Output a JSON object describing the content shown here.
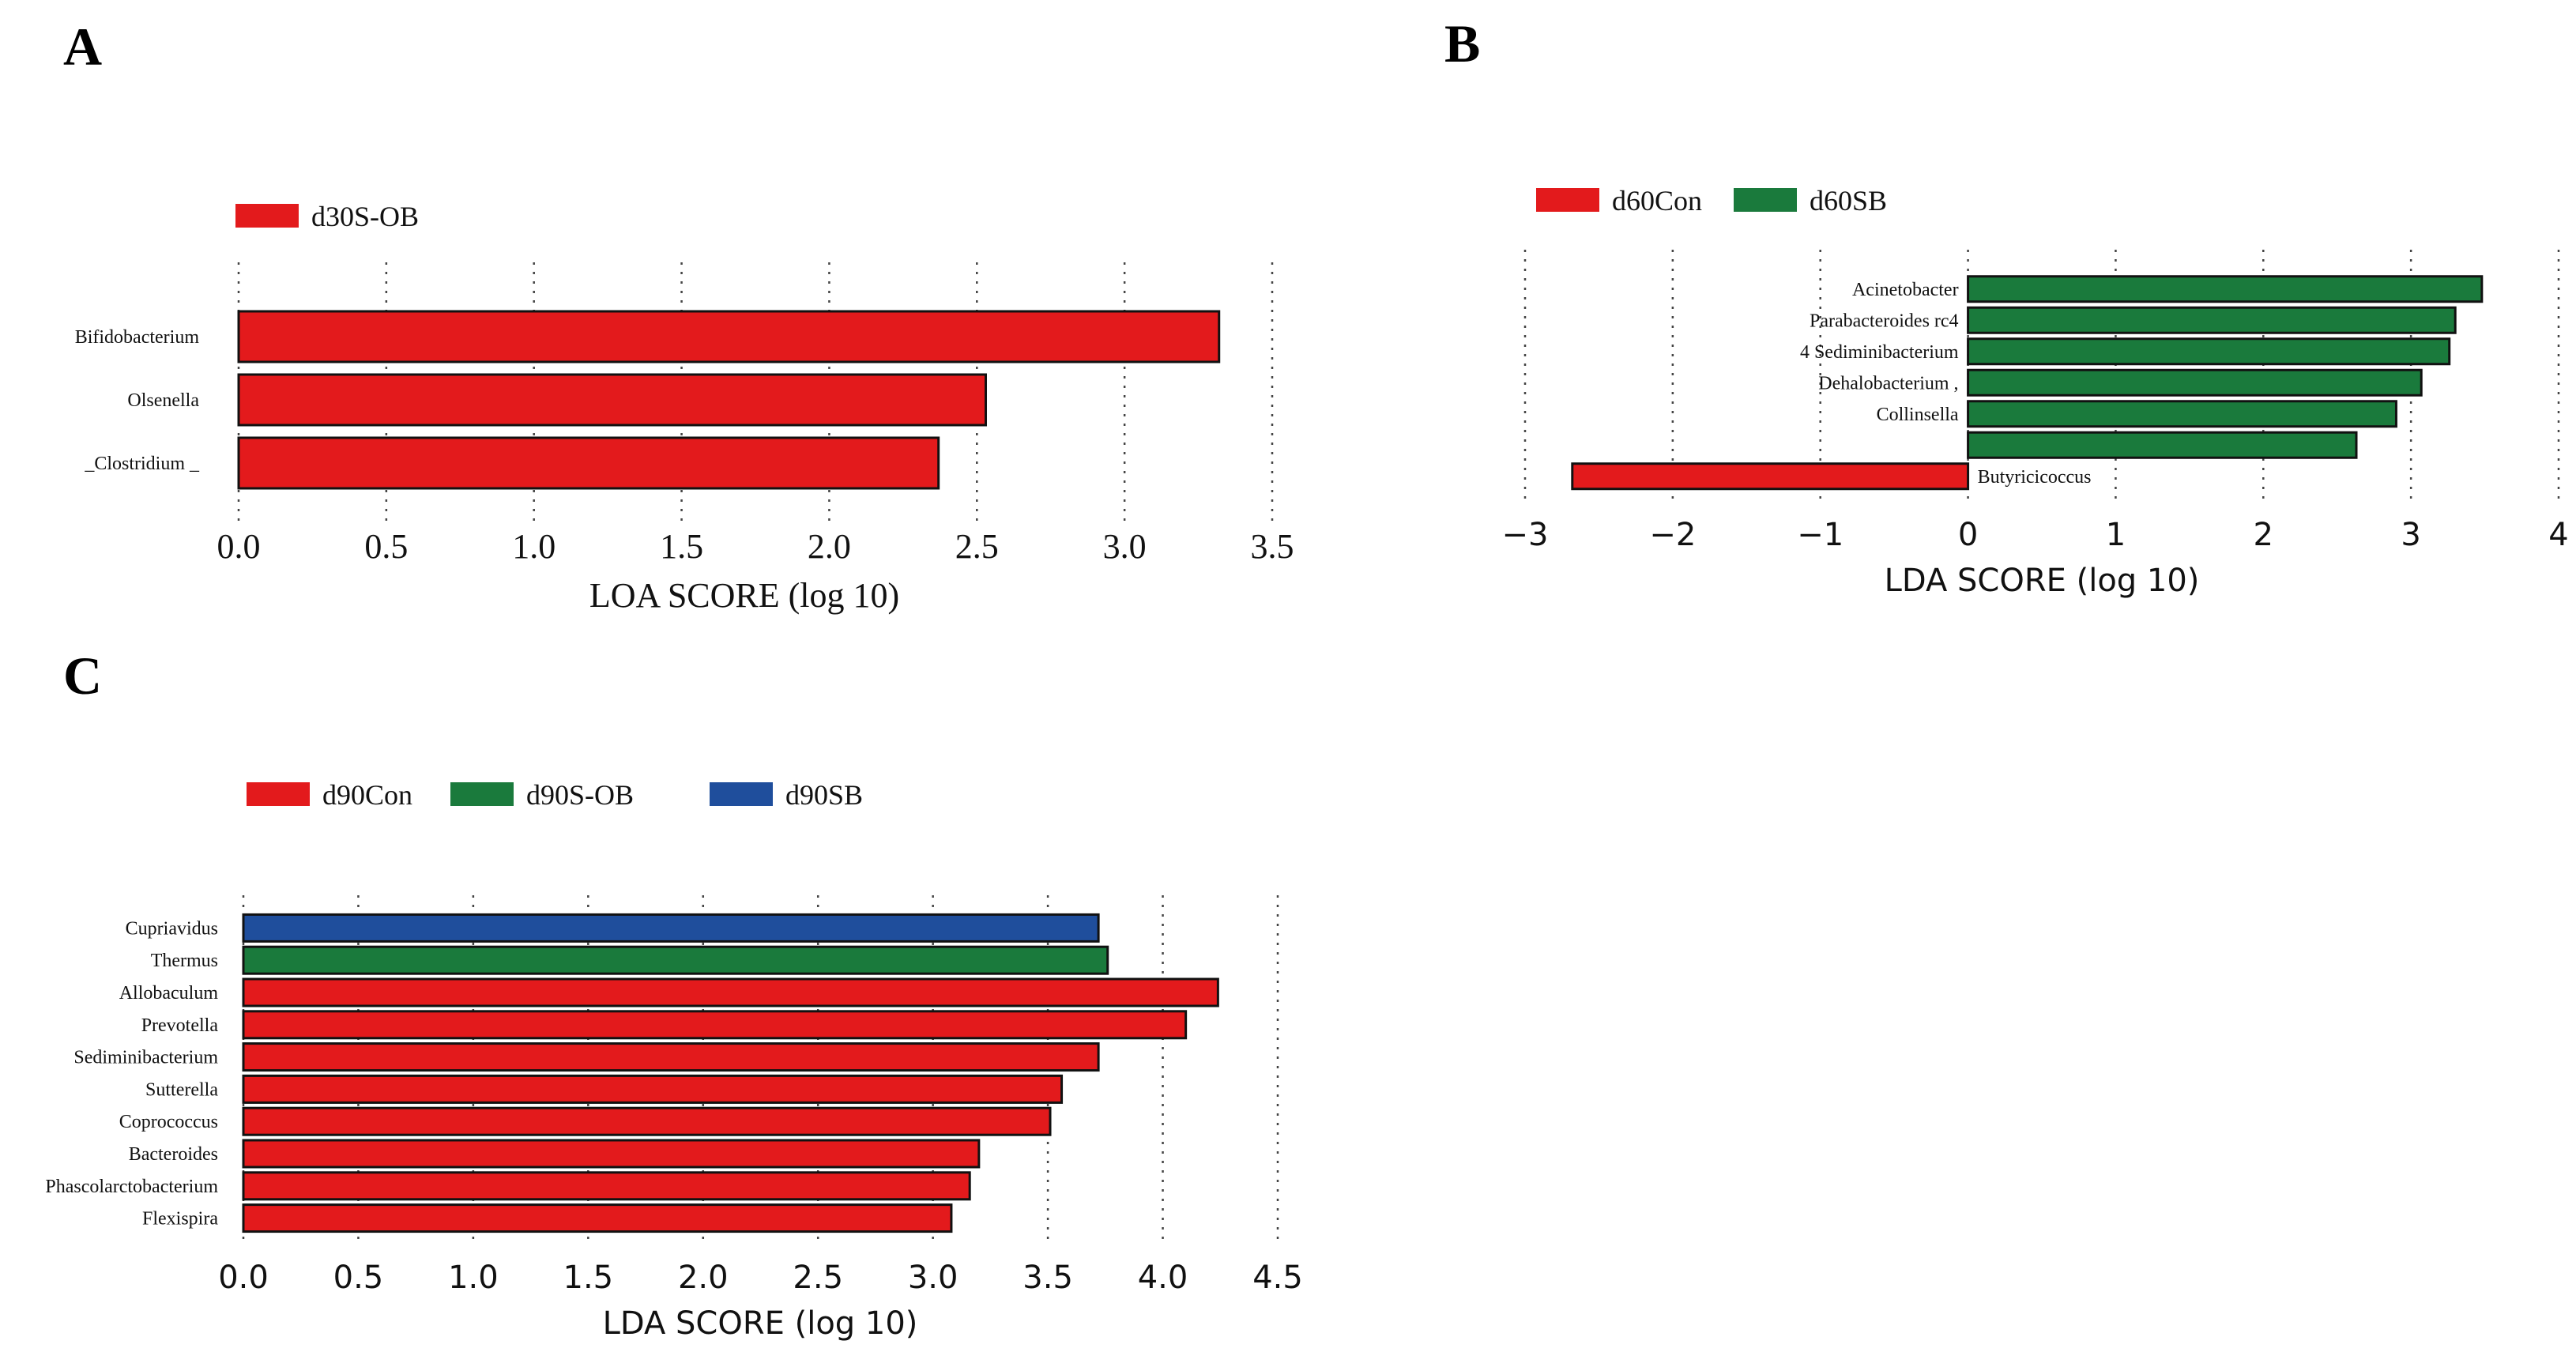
{
  "colors": {
    "red": "#e31a1c",
    "green": "#1a7a3c",
    "blue": "#1f4e9c"
  },
  "chart_data": [
    {
      "panel": "A",
      "type": "bar",
      "orientation": "horizontal",
      "legend": [
        {
          "name": "d30S-OB",
          "color": "#e31a1c"
        }
      ],
      "categories": [
        "Bifidobacterium",
        "Olsenella",
        "_Clostridium _"
      ],
      "values": [
        3.32,
        2.53,
        2.37
      ],
      "groups": [
        "d30S-OB",
        "d30S-OB",
        "d30S-OB"
      ],
      "xlim": [
        0,
        3.5
      ],
      "xticks": [
        "0.0",
        "0.5",
        "1.0",
        "1.5",
        "2.0",
        "2.5",
        "3.0",
        "3.5"
      ],
      "xlabel": "LOA SCORE (log  10)",
      "grid": true,
      "legend_position": "top-left"
    },
    {
      "panel": "B",
      "type": "bar",
      "orientation": "horizontal",
      "legend": [
        {
          "name": "d60Con",
          "color": "#e31a1c"
        },
        {
          "name": "d60SB",
          "color": "#1a7a3c"
        }
      ],
      "categories": [
        "Acinetobacter",
        "Parabacteroides rc4",
        "4 Sediminibacterium",
        "Dehalobacterium ,",
        "Collinsella",
        "",
        "Butyricicoccus"
      ],
      "values": [
        3.48,
        3.3,
        3.26,
        3.07,
        2.9,
        2.63,
        -2.68
      ],
      "groups": [
        "d60SB",
        "d60SB",
        "d60SB",
        "d60SB",
        "d60SB",
        "d60SB",
        "d60Con"
      ],
      "xlim": [
        -3,
        4
      ],
      "xticks": [
        "−3",
        "−2",
        "−1",
        "0",
        "1",
        "2",
        "3",
        "4"
      ],
      "xlabel": "LDA SCORE (log 10)",
      "grid": true,
      "legend_position": "top-left"
    },
    {
      "panel": "C",
      "type": "bar",
      "orientation": "horizontal",
      "legend": [
        {
          "name": "d90Con",
          "color": "#e31a1c"
        },
        {
          "name": "d90S-OB",
          "color": "#1a7a3c"
        },
        {
          "name": "d90SB",
          "color": "#1f4e9c"
        }
      ],
      "categories": [
        "Cupriavidus",
        "Thermus",
        "Allobaculum",
        "Prevotella",
        "Sediminibacterium",
        "Sutterella",
        "Coprococcus",
        "Bacteroides",
        "Phascolarctobacterium",
        "Flexispira"
      ],
      "values": [
        3.72,
        3.76,
        4.24,
        4.1,
        3.72,
        3.56,
        3.51,
        3.2,
        3.16,
        3.08
      ],
      "groups": [
        "d90SB",
        "d90S-OB",
        "d90Con",
        "d90Con",
        "d90Con",
        "d90Con",
        "d90Con",
        "d90Con",
        "d90Con",
        "d90Con"
      ],
      "xlim": [
        0,
        4.5
      ],
      "xticks": [
        "0.0",
        "0.5",
        "1.0",
        "1.5",
        "2.0",
        "2.5",
        "3.0",
        "3.5",
        "4.0",
        "4.5"
      ],
      "xlabel": "LDA SCORE (log 10)",
      "grid": true,
      "legend_position": "top-left"
    }
  ]
}
